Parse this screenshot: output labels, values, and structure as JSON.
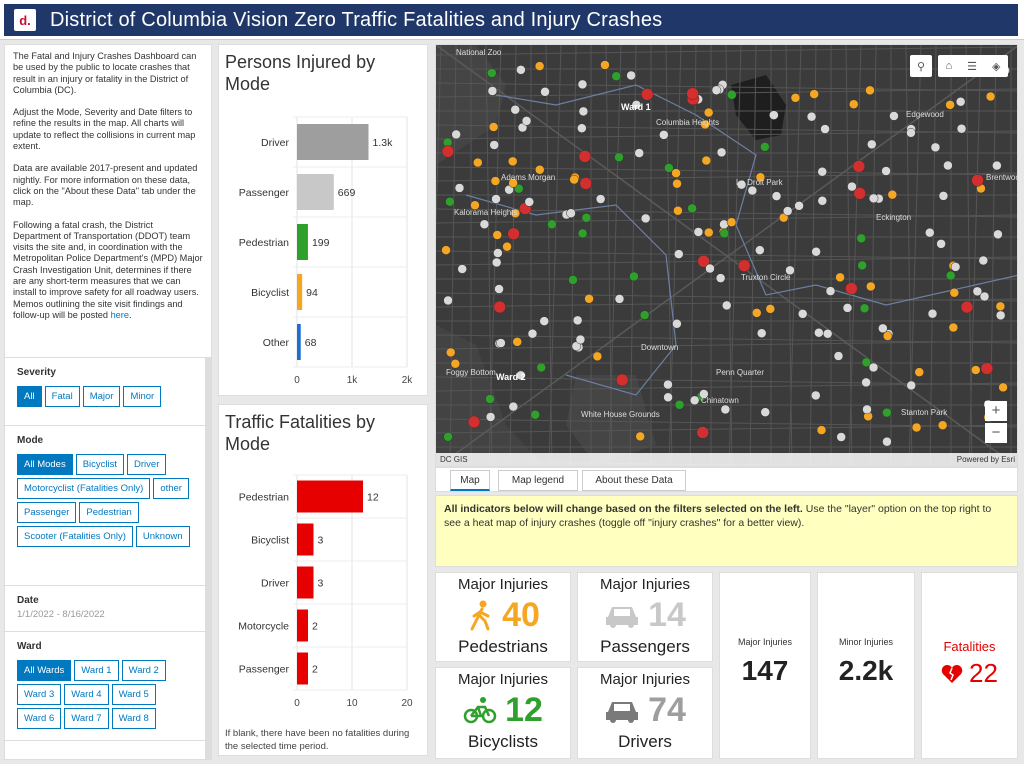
{
  "header": {
    "title": "District of Columbia Vision Zero Traffic Fatalities and Injury Crashes",
    "logo_text": "d."
  },
  "intro": {
    "p1": "The Fatal and Injury Crashes Dashboard can be used by the public to locate crashes that result in an injury or fatality in the District of Columbia (DC).",
    "p2": "Adjust the Mode, Severity and Date filters to refine the results in the map. All charts will update to reflect the collisions in current map extent.",
    "p3": "Data are available 2017-present and updated nightly. For more information on these data, click on the \"About these Data\" tab under the map.",
    "p4": "Following a fatal crash, the District Department of Transportation (DDOT) team visits the site and, in coordination with the Metropolitan Police Department's (MPD) Major Crash Investigation Unit, determines if there are any short-term measures that we can install to improve safety for all roadway users. Memos outlining the site visit findings and follow-up will be posted",
    "link": "here",
    "p4_end": "."
  },
  "filters": {
    "severity": {
      "label": "Severity",
      "options": [
        "All",
        "Fatal",
        "Major",
        "Minor"
      ],
      "selected": "All"
    },
    "mode": {
      "label": "Mode",
      "options": [
        "All Modes",
        "Bicyclist",
        "Driver",
        "Motorcyclist (Fatalities Only)",
        "other",
        "Passenger",
        "Pedestrian",
        "Scooter (Fatalities Only)",
        "Unknown"
      ],
      "selected": "All Modes"
    },
    "date": {
      "label": "Date",
      "value": "1/1/2022 - 8/16/2022"
    },
    "ward": {
      "label": "Ward",
      "options": [
        "All Wards",
        "Ward 1",
        "Ward 2",
        "Ward 3",
        "Ward 4",
        "Ward 5",
        "Ward 6",
        "Ward 7",
        "Ward 8"
      ],
      "selected": "All Wards"
    }
  },
  "injured_chart": {
    "title": "Persons Injured by Mode",
    "chart_data": {
      "type": "bar",
      "orientation": "horizontal",
      "categories": [
        "Driver",
        "Passenger",
        "Pedestrian",
        "Bicyclist",
        "Other"
      ],
      "values": [
        1300,
        669,
        199,
        94,
        68
      ],
      "labels": [
        "1.3k",
        "669",
        "199",
        "94",
        "68"
      ],
      "colors": [
        "#9e9e9e",
        "#c8c8c8",
        "#2ea02b",
        "#f5a623",
        "#1f6fd1"
      ],
      "xlim": [
        0,
        2000
      ],
      "ticks": [
        "0",
        "1k",
        "2k"
      ]
    }
  },
  "fatal_chart": {
    "title": "Traffic Fatalities by Mode",
    "chart_data": {
      "type": "bar",
      "orientation": "horizontal",
      "categories": [
        "Pedestrian",
        "Bicyclist",
        "Driver",
        "Motorcycle",
        "Passenger"
      ],
      "values": [
        12,
        3,
        3,
        2,
        2
      ],
      "labels": [
        "12",
        "3",
        "3",
        "2",
        "2"
      ],
      "colors": [
        "#e60000",
        "#e60000",
        "#e60000",
        "#e60000",
        "#e60000"
      ],
      "xlim": [
        0,
        20
      ],
      "ticks": [
        "0",
        "10",
        "20"
      ]
    },
    "note": "If blank, there have been no fatalities during the selected time period."
  },
  "map": {
    "labels": [
      "Ward 1",
      "Ward 2",
      "National Zoo",
      "Adams Morgan",
      "Kalorama Heights",
      "Columbia Heights",
      "Le Droit Park",
      "Truxton Circle",
      "Eckington",
      "Downtown",
      "Chinatown",
      "Penn Quarter",
      "Foggy Bottom",
      "White House Grounds",
      "Stanton Park",
      "Edgewood",
      "Brentwood"
    ],
    "attribution_left": "DC GIS",
    "attribution_right": "Powered by Esri",
    "zoom_in": "+",
    "zoom_out": "−",
    "accent": "#0079c1"
  },
  "tabs": [
    {
      "label": "Map"
    },
    {
      "label": "Map legend"
    },
    {
      "label": "About these Data"
    }
  ],
  "info": {
    "bold": "All indicators below will change based on the filters selected on the left.",
    "rest": " Use the \"layer\" option on the top right to see a heat map of injury crashes (toggle off \"injury crashes\" for a better view)."
  },
  "indicators": {
    "pedestrians": {
      "title": "Major Injuries",
      "value": "40",
      "label": "Pedestrians",
      "color": "#f5a623"
    },
    "passengers": {
      "title": "Major Injuries",
      "value": "14",
      "label": "Passengers",
      "color": "#c8c8c8"
    },
    "bicyclists": {
      "title": "Major Injuries",
      "value": "12",
      "label": "Bicyclists",
      "color": "#2ea02b"
    },
    "drivers": {
      "title": "Major Injuries",
      "value": "74",
      "label": "Drivers",
      "color": "#9e9e9e"
    },
    "major": {
      "title": "Major Injuries",
      "value": "147"
    },
    "minor": {
      "title": "Minor Injuries",
      "value": "2.2k"
    },
    "fatalities": {
      "title": "Fatalities",
      "value": "22",
      "color": "#e60000"
    }
  }
}
